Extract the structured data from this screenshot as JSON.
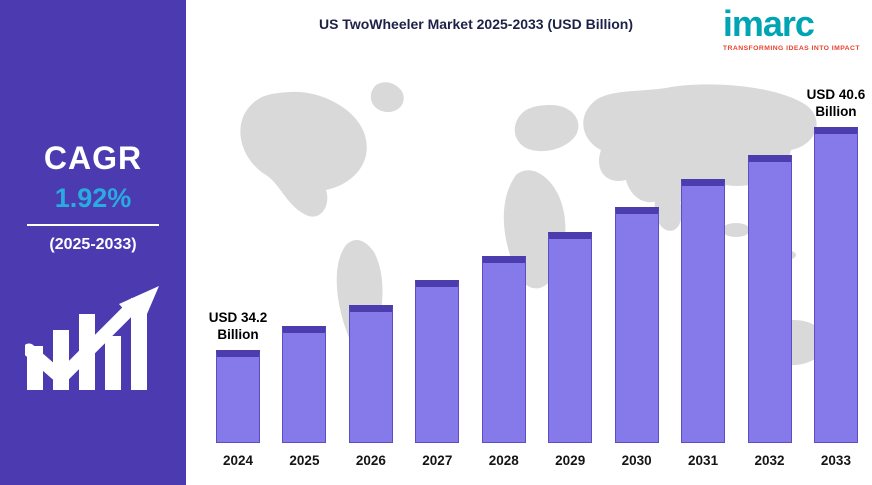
{
  "sidebar": {
    "cagr_label": "CAGR",
    "cagr_value": "1.92%",
    "period": "(2025-2033)"
  },
  "header": {
    "title": "US TwoWheeler Market 2025-2033 (USD Billion)"
  },
  "logo": {
    "name": "imarc",
    "tagline": "TRANSFORMING IDEAS INTO IMPACT"
  },
  "chart_data": {
    "type": "bar",
    "title": "US TwoWheeler Market 2025-2033 (USD Billion)",
    "categories": [
      "2024",
      "2025",
      "2026",
      "2027",
      "2028",
      "2029",
      "2030",
      "2031",
      "2032",
      "2033"
    ],
    "values": [
      34.2,
      34.9,
      35.5,
      36.2,
      36.9,
      37.6,
      38.3,
      39.1,
      39.8,
      40.6
    ],
    "unit": "USD Billion",
    "xlabel": "",
    "ylabel": "",
    "ylim": [
      30,
      42
    ],
    "grid": false,
    "legend": false,
    "annotations": [
      {
        "index": 0,
        "text": "USD 34.2\nBillion"
      },
      {
        "index": 9,
        "text": "USD 40.6\nBillion"
      }
    ],
    "colors": {
      "bar_fill": "#8679E9",
      "bar_top": "#4C3DAF",
      "bar_border": "#5D4DC4",
      "sidebar_bg": "#4B3AB0",
      "cagr_value_text": "#29ABE2",
      "logo_teal": "#00A4B4",
      "logo_red": "#E8432E",
      "map_gray": "#D9D9D9",
      "title_text": "#1E2147"
    }
  }
}
